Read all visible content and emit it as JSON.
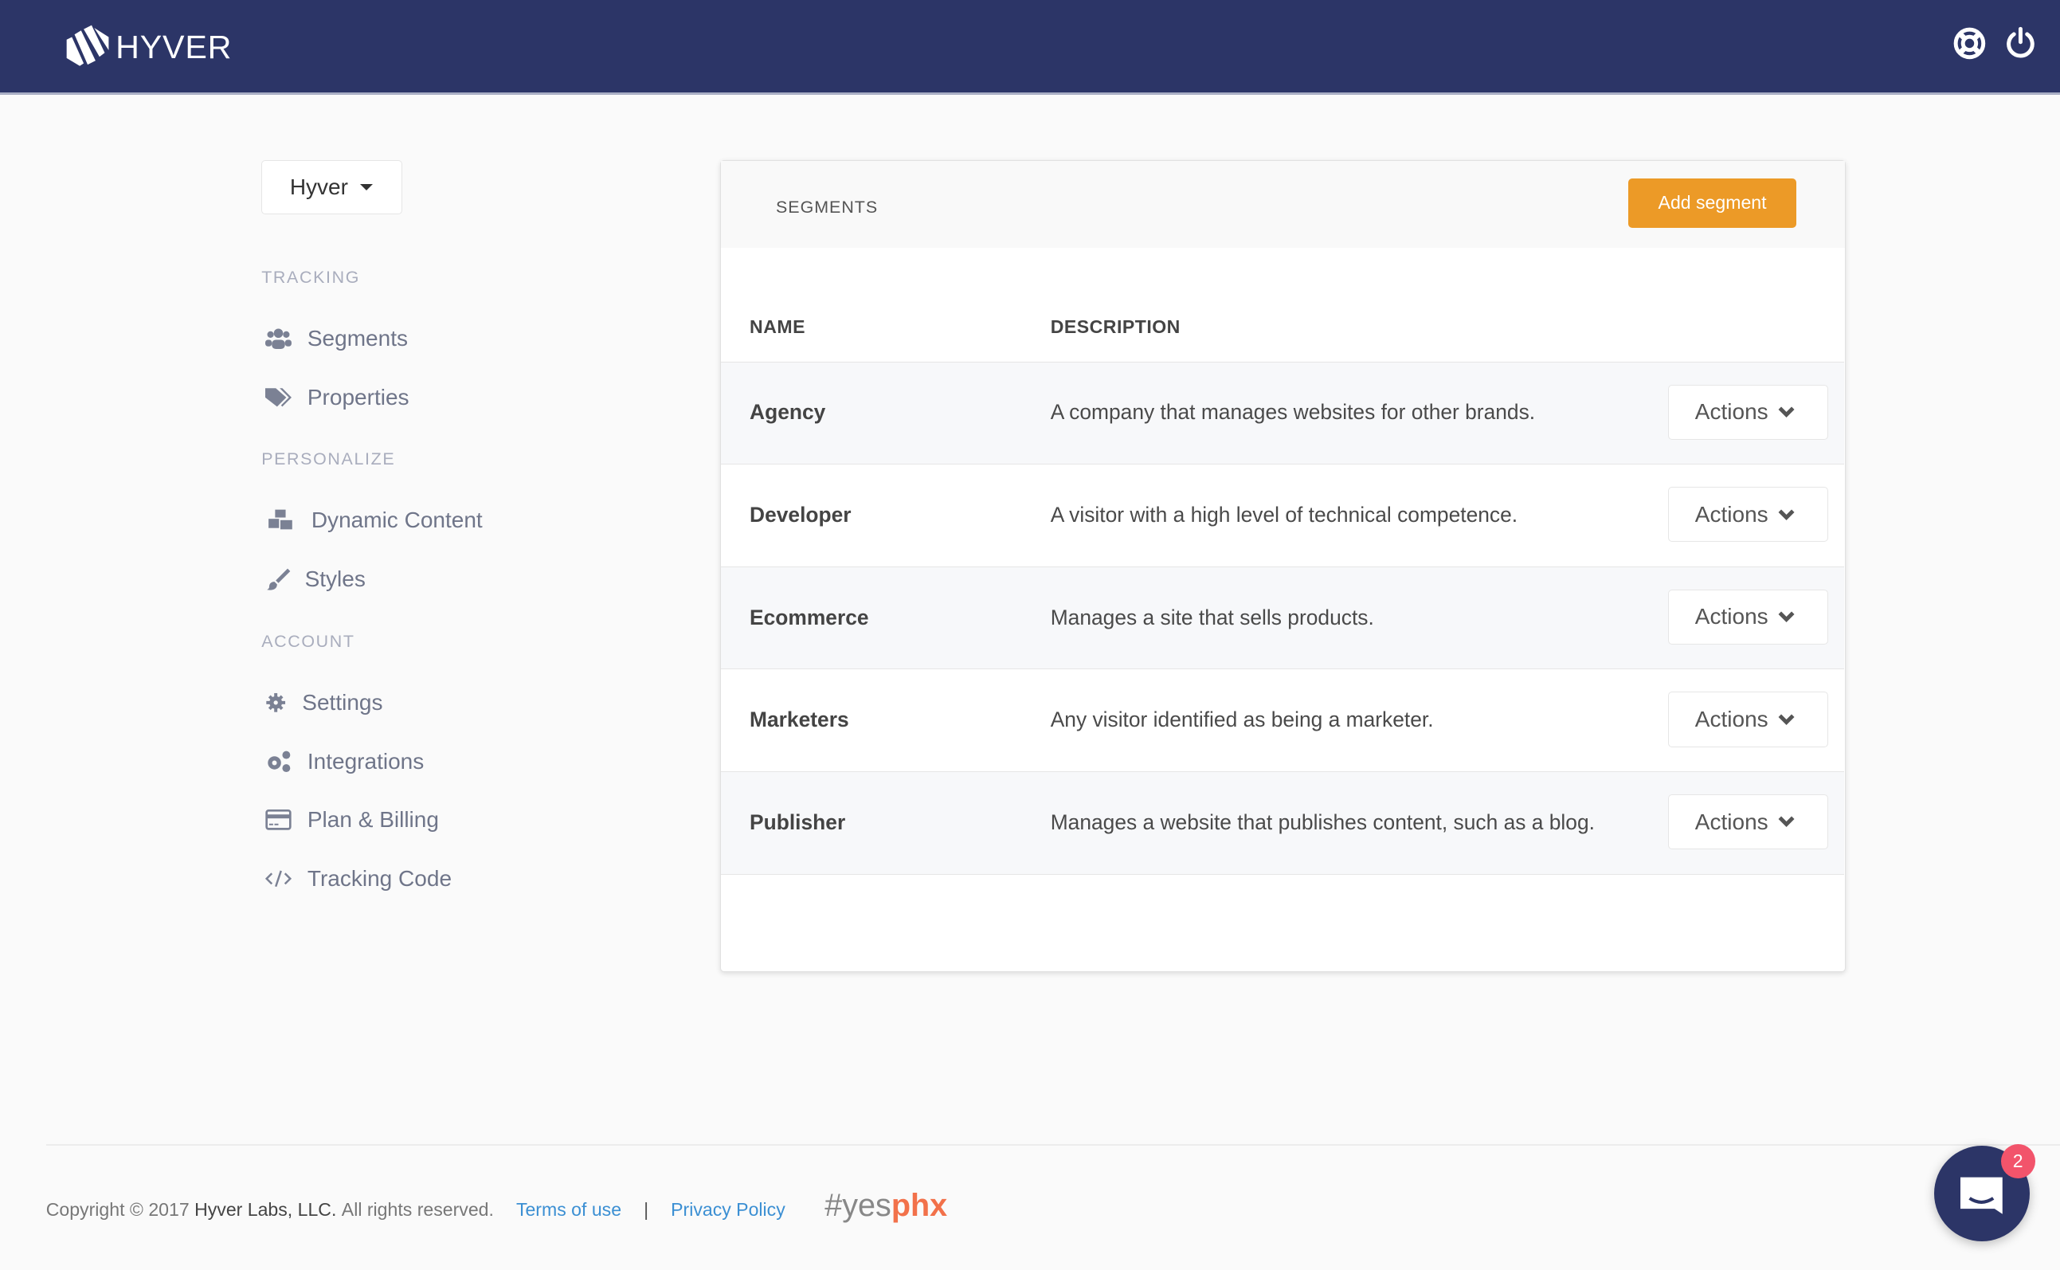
{
  "header": {
    "brand": "HYVER",
    "icons": [
      "lifebuoy-icon",
      "power-icon"
    ]
  },
  "workspace": {
    "selected": "Hyver"
  },
  "sidebar": {
    "sections": [
      {
        "title": "TRACKING",
        "items": [
          {
            "label": "Segments",
            "icon": "users-icon"
          },
          {
            "label": "Properties",
            "icon": "tags-icon"
          }
        ]
      },
      {
        "title": "PERSONALIZE",
        "items": [
          {
            "label": "Dynamic Content",
            "icon": "cubes-icon"
          },
          {
            "label": "Styles",
            "icon": "paintbrush-icon"
          }
        ]
      },
      {
        "title": "ACCOUNT",
        "items": [
          {
            "label": "Settings",
            "icon": "gear-icon"
          },
          {
            "label": "Integrations",
            "icon": "gears-icon"
          },
          {
            "label": "Plan & Billing",
            "icon": "credit-card-icon"
          },
          {
            "label": "Tracking Code",
            "icon": "code-icon"
          }
        ]
      }
    ]
  },
  "panel": {
    "title": "SEGMENTS",
    "add_label": "Add segment",
    "columns": [
      "NAME",
      "DESCRIPTION"
    ],
    "action_label": "Actions",
    "rows": [
      {
        "name": "Agency",
        "description": "A company that manages websites for other brands."
      },
      {
        "name": "Developer",
        "description": "A visitor with a high level of technical competence."
      },
      {
        "name": "Ecommerce",
        "description": "Manages a site that sells products."
      },
      {
        "name": "Marketers",
        "description": "Any visitor identified as being a marketer."
      },
      {
        "name": "Publisher",
        "description": "Manages a website that publishes content, such as a blog."
      }
    ]
  },
  "footer": {
    "copyright_prefix": "Copyright © 2017",
    "company": "Hyver Labs, LLC.",
    "rights": "All rights reserved.",
    "terms": "Terms of use",
    "separator": "|",
    "privacy": "Privacy Policy",
    "tag_a": "#yes",
    "tag_b": "phx"
  },
  "chat": {
    "badge": "2"
  },
  "colors": {
    "header": "#2c3567",
    "accent": "#ec9a27",
    "link": "#3b8fd3",
    "badge": "#f2546b"
  }
}
